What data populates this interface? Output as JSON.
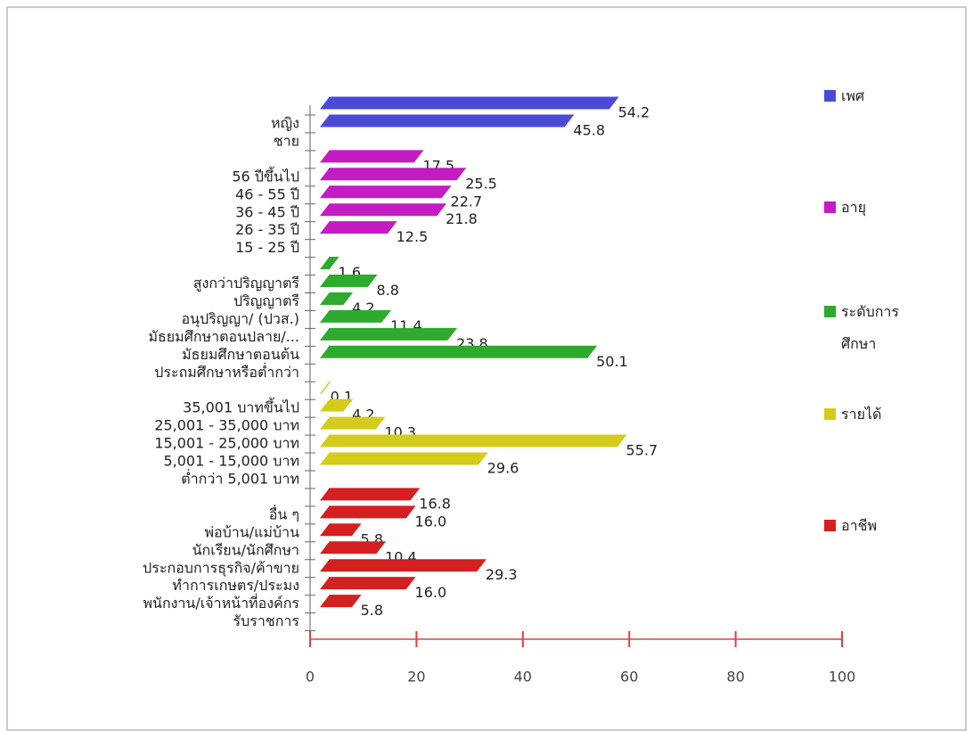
{
  "chart_data": {
    "type": "bar",
    "series": [
      {
        "name": "เพศ",
        "color": "#4a4ad8",
        "categories": [
          "หญิง",
          "ชาย"
        ],
        "values": [
          54.2,
          45.8
        ],
        "value_labels": [
          "54.2",
          "45.8"
        ]
      },
      {
        "name": "อายุ",
        "color": "#c21cc2",
        "categories": [
          "56 ปีขึ้นไป",
          "46 - 55 ปี",
          "36 - 45 ปี",
          "26 - 35 ปี",
          "15 - 25 ปี"
        ],
        "values": [
          17.5,
          25.5,
          22.7,
          21.8,
          12.5
        ],
        "value_labels": [
          "17.5",
          "25.5",
          "22.7",
          "21.8",
          "12.5"
        ]
      },
      {
        "name": "ระดับการศึกษา",
        "color": "#2eaa2e",
        "categories": [
          "สูงกว่าปริญญาตรี",
          "ปริญญาตรี",
          "อนุปริญญา/ (ปวส.)",
          "มัธยมศึกษาตอนปลาย/...",
          "มัธยมศึกษาตอนต้น",
          "ประถมศึกษาหรือต่ำกว่า"
        ],
        "values": [
          1.6,
          8.8,
          4.2,
          11.4,
          23.8,
          50.1
        ],
        "value_labels": [
          "1.6",
          "8.8",
          "4.2",
          "11.4",
          "23.8",
          "50.1"
        ]
      },
      {
        "name": "รายได้",
        "color": "#d4cc1a",
        "categories": [
          "35,001 บาทขึ้นไป",
          "25,001 - 35,000 บาท",
          "15,001 - 25,000 บาท",
          "5,001 - 15,000 บาท",
          "ต่ำกว่า 5,001 บาท"
        ],
        "values": [
          0.1,
          4.2,
          10.3,
          55.7,
          29.6
        ],
        "value_labels": [
          "0.1",
          "4.2",
          "10.3",
          "55.7",
          "29.6"
        ]
      },
      {
        "name": "อาชีพ",
        "color": "#d42020",
        "categories": [
          "อื่น ๆ",
          "พ่อบ้าน/แม่บ้าน",
          "นักเรียน/นักศึกษา",
          "ประกอบการธุรกิจ/ค้าขาย",
          "ทำการเกษตร/ประมง",
          "พนักงาน/เจ้าหน้าที่องค์กร",
          "รับราชการ"
        ],
        "values": [
          16.8,
          16,
          5.8,
          10.4,
          29.3,
          16,
          5.8
        ],
        "value_labels": [
          "16.8",
          "16.0",
          "5.8",
          "10.4",
          "29.3",
          "16.0",
          "5.8"
        ]
      }
    ],
    "xlim": [
      0,
      100
    ],
    "xticks": [
      0,
      20,
      40,
      60,
      80,
      100
    ],
    "legend": "right"
  }
}
